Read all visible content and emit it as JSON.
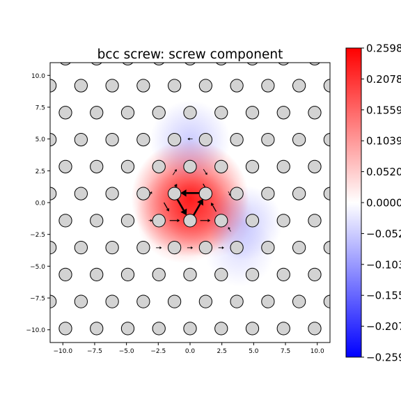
{
  "chart_data": {
    "type": "heatmap",
    "title": "bcc screw: screw component",
    "xlabel": "",
    "ylabel": "",
    "xlim": [
      -11,
      11
    ],
    "ylim": [
      -11,
      11
    ],
    "x_ticks": [
      -10.0,
      -7.5,
      -5.0,
      -2.5,
      0.0,
      2.5,
      5.0,
      7.5,
      10.0
    ],
    "x_tick_labels": [
      "−10.0",
      "−7.5",
      "−5.0",
      "−2.5",
      "0.0",
      "2.5",
      "5.0",
      "7.5",
      "10.0"
    ],
    "y_ticks": [
      -10.0,
      -7.5,
      -5.0,
      -2.5,
      0.0,
      2.5,
      5.0,
      7.5,
      10.0
    ],
    "y_tick_labels": [
      "−10.0",
      "−7.5",
      "−5.0",
      "−2.5",
      "0.0",
      "2.5",
      "5.0",
      "7.5",
      "10.0"
    ],
    "colormap": "bwr",
    "colorbar": {
      "range": [
        -0.2598,
        0.2598
      ],
      "ticks": [
        0.2598,
        0.2078,
        0.1559,
        0.1039,
        0.052,
        0.0,
        -0.052,
        -0.1039,
        -0.1559,
        -0.2078,
        -0.2598
      ],
      "labels": [
        "0.2598",
        "0.2078",
        "0.1559",
        "0.1039",
        "0.0520",
        "0.0000",
        "−0.0520",
        "−0.1039",
        "−0.1559",
        "−0.2078",
        "−0.2598"
      ],
      "color_top": "#ff0000",
      "color_mid": "#ffffff",
      "color_bottom": "#0000ff"
    },
    "atoms": {
      "fill": "#d3d3d3",
      "edge": "#000000",
      "radius": 0.55,
      "lattice_a": [
        2.449,
        0
      ],
      "lattice_b": [
        1.2245,
        2.121
      ],
      "origin": [
        0.0,
        -1.414
      ]
    },
    "field": [
      {
        "x": 0.0,
        "y": 0.35,
        "value": 0.26,
        "sigma": 2.2
      },
      {
        "x": -0.5,
        "y": -1.0,
        "value": 0.12,
        "sigma": 1.8
      },
      {
        "x": 1.6,
        "y": -1.0,
        "value": 0.08,
        "sigma": 1.6
      },
      {
        "x": 0.0,
        "y": 4.9,
        "value": -0.06,
        "sigma": 1.5
      },
      {
        "x": 4.3,
        "y": -1.6,
        "value": -0.06,
        "sigma": 1.4
      },
      {
        "x": 3.9,
        "y": -3.9,
        "value": -0.035,
        "sigma": 1.3
      }
    ],
    "arrows": [
      {
        "x": 0.0,
        "y": 0.75,
        "dx": -1.5,
        "dy": 0.0,
        "w": 2.6
      },
      {
        "x": 0.65,
        "y": -0.35,
        "dx": 0.75,
        "dy": 1.3,
        "w": 2.6
      },
      {
        "x": -0.65,
        "y": -0.35,
        "dx": 0.75,
        "dy": -1.3,
        "w": 2.6
      },
      {
        "x": -1.25,
        "y": 1.1,
        "dx": 0.45,
        "dy": 0.75,
        "w": 1.3
      },
      {
        "x": 1.25,
        "y": 1.1,
        "dx": 0.45,
        "dy": -0.75,
        "w": 1.3
      },
      {
        "x": 0.0,
        "y": -2.15,
        "dx": 0.0,
        "dy": 0.0,
        "w": 1.3
      },
      {
        "x": -1.85,
        "y": -0.35,
        "dx": 0.4,
        "dy": -0.7,
        "w": 1.3
      },
      {
        "x": 1.85,
        "y": -0.35,
        "dx": -0.4,
        "dy": 0.7,
        "w": 1.3
      },
      {
        "x": -1.2,
        "y": -1.41,
        "dx": 0.8,
        "dy": 0.0,
        "w": 1.2
      },
      {
        "x": 1.2,
        "y": -1.41,
        "dx": 0.8,
        "dy": 0.0,
        "w": 1.2
      },
      {
        "x": -2.45,
        "y": -3.55,
        "dx": 0.45,
        "dy": 0.0,
        "w": 0.9
      },
      {
        "x": 0.0,
        "y": -3.55,
        "dx": 0.45,
        "dy": 0.0,
        "w": 0.9
      },
      {
        "x": 2.45,
        "y": -3.55,
        "dx": 0.45,
        "dy": 0.0,
        "w": 0.9
      },
      {
        "x": -1.2,
        "y": 2.4,
        "dx": 0.3,
        "dy": 0.45,
        "w": 0.9
      },
      {
        "x": 1.2,
        "y": 2.4,
        "dx": 0.3,
        "dy": -0.45,
        "w": 0.9
      },
      {
        "x": 0.0,
        "y": 5.0,
        "dx": -0.4,
        "dy": 0.0,
        "w": 0.8
      },
      {
        "x": -3.1,
        "y": 0.7,
        "dx": 0.2,
        "dy": 0.35,
        "w": 0.8
      },
      {
        "x": 3.1,
        "y": 0.7,
        "dx": 0.2,
        "dy": -0.35,
        "w": 0.8
      },
      {
        "x": -3.1,
        "y": -1.41,
        "dx": 0.3,
        "dy": 0.0,
        "w": 0.8
      },
      {
        "x": 3.1,
        "y": -2.1,
        "dx": -0.2,
        "dy": 0.35,
        "w": 0.8
      }
    ]
  }
}
